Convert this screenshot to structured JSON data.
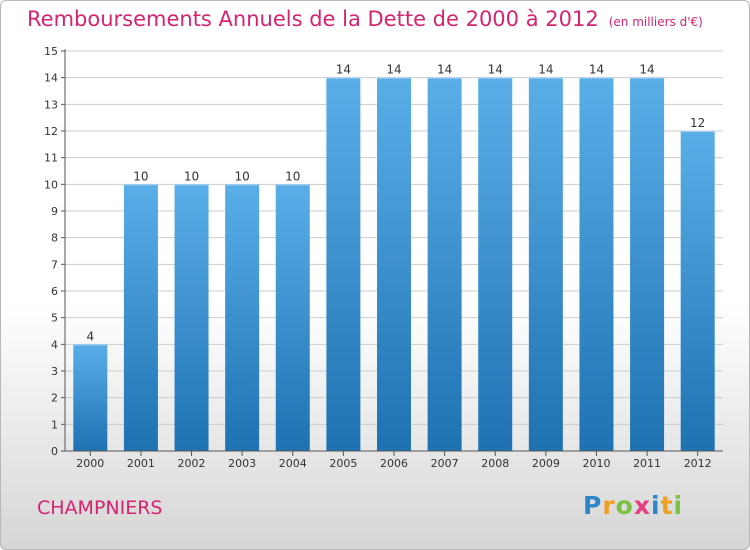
{
  "title": "Remboursements Annuels de la Dette de 2000 à 2012",
  "unit_note": "(en milliers d'€)",
  "location_label": "CHAMPNIERS",
  "logo_text": "Proxiti",
  "logo_letters": [
    {
      "ch": "P",
      "color": "#2e86c8"
    },
    {
      "ch": "r",
      "color": "#f0a020"
    },
    {
      "ch": "o",
      "color": "#7cc242"
    },
    {
      "ch": "x",
      "color": "#e83e7d"
    },
    {
      "ch": "i",
      "color": "#2e86c8"
    },
    {
      "ch": "t",
      "color": "#f0a020"
    },
    {
      "ch": "i",
      "color": "#7cc242"
    }
  ],
  "colors": {
    "title": "#d6246e",
    "bar_top": "#5aaee8",
    "bar_bottom": "#1f72b2",
    "grid": "#cccccc"
  },
  "chart_data": {
    "type": "bar",
    "title": "Remboursements Annuels de la Dette de 2000 à 2012",
    "xlabel": "",
    "ylabel": "",
    "categories": [
      "2000",
      "2001",
      "2002",
      "2003",
      "2004",
      "2005",
      "2006",
      "2007",
      "2008",
      "2009",
      "2010",
      "2011",
      "2012"
    ],
    "values": [
      4,
      10,
      10,
      10,
      10,
      14,
      14,
      14,
      14,
      14,
      14,
      14,
      12
    ],
    "ylim": [
      0,
      15
    ],
    "yticks": [
      0,
      1,
      2,
      3,
      4,
      5,
      6,
      7,
      8,
      9,
      10,
      11,
      12,
      13,
      14,
      15
    ],
    "grid": true,
    "data_labels": true
  }
}
